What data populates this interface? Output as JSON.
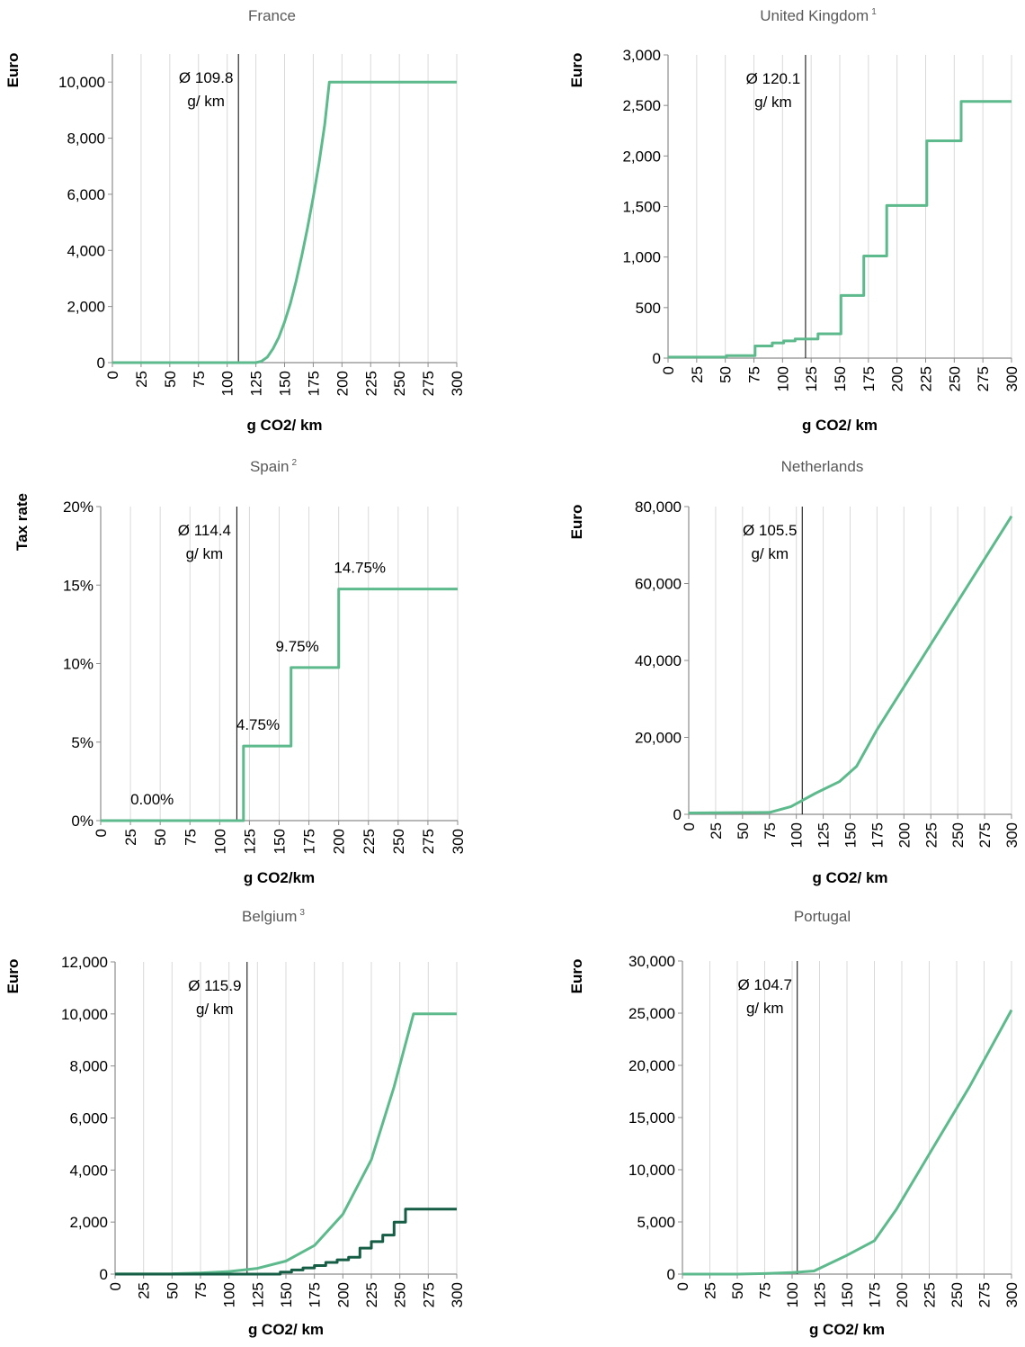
{
  "colors": {
    "series": "#5dba8c",
    "series_dark": "#155e45",
    "grid": "#d9d9d9",
    "axis": "#8c8c8c",
    "mean_line": "#000000"
  },
  "chart_data": [
    {
      "type": "line",
      "title": "France",
      "footnote": "",
      "ylabel": "Euro",
      "xlabel": "g CO2/ km",
      "xlim": [
        0,
        300
      ],
      "ylim": [
        0,
        11000
      ],
      "x_ticks": [
        0,
        25,
        50,
        75,
        100,
        125,
        150,
        175,
        200,
        225,
        250,
        275,
        300
      ],
      "x_tick_labels": [
        "0",
        "25",
        "50",
        "75",
        "100",
        "125",
        "150",
        "175",
        "200",
        "225",
        "250",
        "275",
        "300"
      ],
      "y_ticks": [
        0,
        2000,
        4000,
        6000,
        8000,
        10000
      ],
      "y_tick_labels": [
        "0",
        "2,000",
        "4,000",
        "6,000",
        "8,000",
        "10,000"
      ],
      "mean": {
        "x": 109.8,
        "label_line1": "Ø 109.8",
        "label_line2": "g/ km"
      },
      "series": [
        {
          "style": "light",
          "step": false,
          "points": [
            [
              0,
              0
            ],
            [
              125,
              0
            ],
            [
              130,
              50
            ],
            [
              135,
              200
            ],
            [
              140,
              500
            ],
            [
              145,
              900
            ],
            [
              150,
              1450
            ],
            [
              155,
              2100
            ],
            [
              160,
              2900
            ],
            [
              165,
              3800
            ],
            [
              170,
              4800
            ],
            [
              175,
              5900
            ],
            [
              180,
              7100
            ],
            [
              185,
              8500
            ],
            [
              189,
              10000
            ],
            [
              300,
              10000
            ]
          ]
        }
      ],
      "value_labels": []
    },
    {
      "type": "line",
      "title": "United Kingdom",
      "footnote": "1",
      "ylabel": "Euro",
      "xlabel": "g CO2/ km",
      "xlim": [
        0,
        300
      ],
      "ylim": [
        0,
        3000
      ],
      "x_ticks": [
        0,
        25,
        50,
        75,
        100,
        125,
        150,
        175,
        200,
        225,
        250,
        275,
        300
      ],
      "x_tick_labels": [
        "0",
        "25",
        "50",
        "75",
        "100",
        "125",
        "150",
        "175",
        "200",
        "225",
        "250",
        "275",
        "300"
      ],
      "y_ticks": [
        0,
        500,
        1000,
        1500,
        2000,
        2500,
        3000
      ],
      "y_tick_labels": [
        "0",
        "500",
        "1,000",
        "1,500",
        "2,000",
        "2,500",
        "3,000"
      ],
      "mean": {
        "x": 120.1,
        "label_line1": "Ø 120.1",
        "label_line2": "g/ km"
      },
      "series": [
        {
          "style": "light",
          "step": false,
          "points": [
            [
              0,
              10
            ],
            [
              51,
              10
            ],
            [
              51,
              25
            ],
            [
              76,
              25
            ],
            [
              76,
              120
            ],
            [
              91,
              120
            ],
            [
              91,
              150
            ],
            [
              101,
              150
            ],
            [
              101,
              170
            ],
            [
              111,
              170
            ],
            [
              111,
              190
            ],
            [
              131,
              190
            ],
            [
              131,
              240
            ],
            [
              151,
              240
            ],
            [
              151,
              620
            ],
            [
              171,
              620
            ],
            [
              171,
              1010
            ],
            [
              191,
              1010
            ],
            [
              191,
              1510
            ],
            [
              226,
              1510
            ],
            [
              226,
              2150
            ],
            [
              256,
              2150
            ],
            [
              256,
              2540
            ],
            [
              300,
              2540
            ]
          ]
        }
      ],
      "value_labels": []
    },
    {
      "type": "line",
      "title": "Spain",
      "footnote": "2",
      "ylabel": "Tax rate",
      "xlabel": "g CO2/km",
      "xlim": [
        0,
        300
      ],
      "ylim": [
        0,
        20
      ],
      "x_ticks": [
        0,
        25,
        50,
        75,
        100,
        125,
        150,
        175,
        200,
        225,
        250,
        275,
        300
      ],
      "x_tick_labels": [
        "0",
        "25",
        "50",
        "75",
        "100",
        "125",
        "150",
        "175",
        "200",
        "225",
        "250",
        "275",
        "300"
      ],
      "y_ticks": [
        0,
        5,
        10,
        15,
        20
      ],
      "y_tick_labels": [
        "0%",
        "5%",
        "10%",
        "15%",
        "20%"
      ],
      "mean": {
        "x": 114.4,
        "label_line1": "Ø 114.4",
        "label_line2": "g/ km"
      },
      "series": [
        {
          "style": "light",
          "step": false,
          "points": [
            [
              0,
              0
            ],
            [
              120,
              0
            ],
            [
              120,
              4.75
            ],
            [
              160,
              4.75
            ],
            [
              160,
              9.75
            ],
            [
              200,
              9.75
            ],
            [
              200,
              14.75
            ],
            [
              300,
              14.75
            ]
          ]
        }
      ],
      "value_labels": [
        {
          "text": "0.00%",
          "x": 25,
          "y": 0
        },
        {
          "text": "4.75%",
          "x": 114,
          "y": 4.75
        },
        {
          "text": "9.75%",
          "x": 147,
          "y": 9.75
        },
        {
          "text": "14.75%",
          "x": 196,
          "y": 14.75
        }
      ]
    },
    {
      "type": "line",
      "title": "Netherlands",
      "footnote": "",
      "ylabel": "Euro",
      "xlabel": "g CO2/ km",
      "xlim": [
        0,
        300
      ],
      "ylim": [
        0,
        80000
      ],
      "x_ticks": [
        0,
        25,
        50,
        75,
        100,
        125,
        150,
        175,
        200,
        225,
        250,
        275,
        300
      ],
      "x_tick_labels": [
        "0",
        "25",
        "50",
        "75",
        "100",
        "125",
        "150",
        "175",
        "200",
        "225",
        "250",
        "275",
        "300"
      ],
      "y_ticks": [
        0,
        20000,
        40000,
        60000,
        80000
      ],
      "y_tick_labels": [
        "0",
        "20,000",
        "40,000",
        "60,000",
        "80,000"
      ],
      "mean": {
        "x": 105.5,
        "label_line1": "Ø 105.5",
        "label_line2": "g/ km"
      },
      "series": [
        {
          "style": "light",
          "step": false,
          "points": [
            [
              0,
              350
            ],
            [
              75,
              500
            ],
            [
              95,
              2000
            ],
            [
              118,
              5500
            ],
            [
              140,
              8500
            ],
            [
              156,
              12500
            ],
            [
              175,
              22000
            ],
            [
              300,
              77500
            ]
          ]
        }
      ],
      "value_labels": []
    },
    {
      "type": "line",
      "title": "Belgium",
      "footnote": "3",
      "ylabel": "Euro",
      "xlabel": "g CO2/ km",
      "xlim": [
        0,
        300
      ],
      "ylim": [
        0,
        12000
      ],
      "x_ticks": [
        0,
        25,
        50,
        75,
        100,
        125,
        150,
        175,
        200,
        225,
        250,
        275,
        300
      ],
      "x_tick_labels": [
        "0",
        "25",
        "50",
        "75",
        "100",
        "125",
        "150",
        "175",
        "200",
        "225",
        "250",
        "275",
        "300"
      ],
      "y_ticks": [
        0,
        2000,
        4000,
        6000,
        8000,
        10000,
        12000
      ],
      "y_tick_labels": [
        "0",
        "2,000",
        "4,000",
        "6,000",
        "8,000",
        "10,000",
        "12,000"
      ],
      "mean": {
        "x": 115.9,
        "label_line1": "Ø 115.9",
        "label_line2": "g/ km"
      },
      "series": [
        {
          "style": "light",
          "step": false,
          "points": [
            [
              0,
              10
            ],
            [
              50,
              15
            ],
            [
              75,
              40
            ],
            [
              100,
              100
            ],
            [
              125,
              220
            ],
            [
              150,
              500
            ],
            [
              175,
              1100
            ],
            [
              200,
              2300
            ],
            [
              225,
              4400
            ],
            [
              245,
              7200
            ],
            [
              262,
              10000
            ],
            [
              300,
              10000
            ]
          ]
        },
        {
          "style": "dark",
          "step": false,
          "points": [
            [
              0,
              0
            ],
            [
              145,
              0
            ],
            [
              145,
              80
            ],
            [
              155,
              80
            ],
            [
              155,
              160
            ],
            [
              165,
              160
            ],
            [
              165,
              240
            ],
            [
              175,
              240
            ],
            [
              175,
              330
            ],
            [
              185,
              330
            ],
            [
              185,
              450
            ],
            [
              195,
              450
            ],
            [
              195,
              550
            ],
            [
              205,
              550
            ],
            [
              205,
              650
            ],
            [
              215,
              650
            ],
            [
              215,
              1000
            ],
            [
              225,
              1000
            ],
            [
              225,
              1250
            ],
            [
              235,
              1250
            ],
            [
              235,
              1500
            ],
            [
              245,
              1500
            ],
            [
              245,
              2000
            ],
            [
              255,
              2000
            ],
            [
              255,
              2500
            ],
            [
              300,
              2500
            ]
          ]
        }
      ],
      "value_labels": []
    },
    {
      "type": "line",
      "title": "Portugal",
      "footnote": "",
      "ylabel": "Euro",
      "xlabel": "g CO2/ km",
      "xlim": [
        0,
        300
      ],
      "ylim": [
        0,
        30000
      ],
      "x_ticks": [
        0,
        25,
        50,
        75,
        100,
        125,
        150,
        175,
        200,
        225,
        250,
        275,
        300
      ],
      "x_tick_labels": [
        "0",
        "25",
        "50",
        "75",
        "100",
        "125",
        "150",
        "175",
        "200",
        "225",
        "250",
        "275",
        "300"
      ],
      "y_ticks": [
        0,
        5000,
        10000,
        15000,
        20000,
        25000,
        30000
      ],
      "y_tick_labels": [
        "0",
        "5,000",
        "10,000",
        "15,000",
        "20,000",
        "25,000",
        "30,000"
      ],
      "mean": {
        "x": 104.7,
        "label_line1": "Ø 104.7",
        "label_line2": "g/ km"
      },
      "series": [
        {
          "style": "light",
          "step": false,
          "points": [
            [
              0,
              0
            ],
            [
              50,
              0
            ],
            [
              75,
              50
            ],
            [
              100,
              150
            ],
            [
              120,
              300
            ],
            [
              150,
              1800
            ],
            [
              175,
              3200
            ],
            [
              195,
              6200
            ],
            [
              225,
              11500
            ],
            [
              262,
              18000
            ],
            [
              300,
              25300
            ]
          ]
        }
      ],
      "value_labels": []
    }
  ]
}
